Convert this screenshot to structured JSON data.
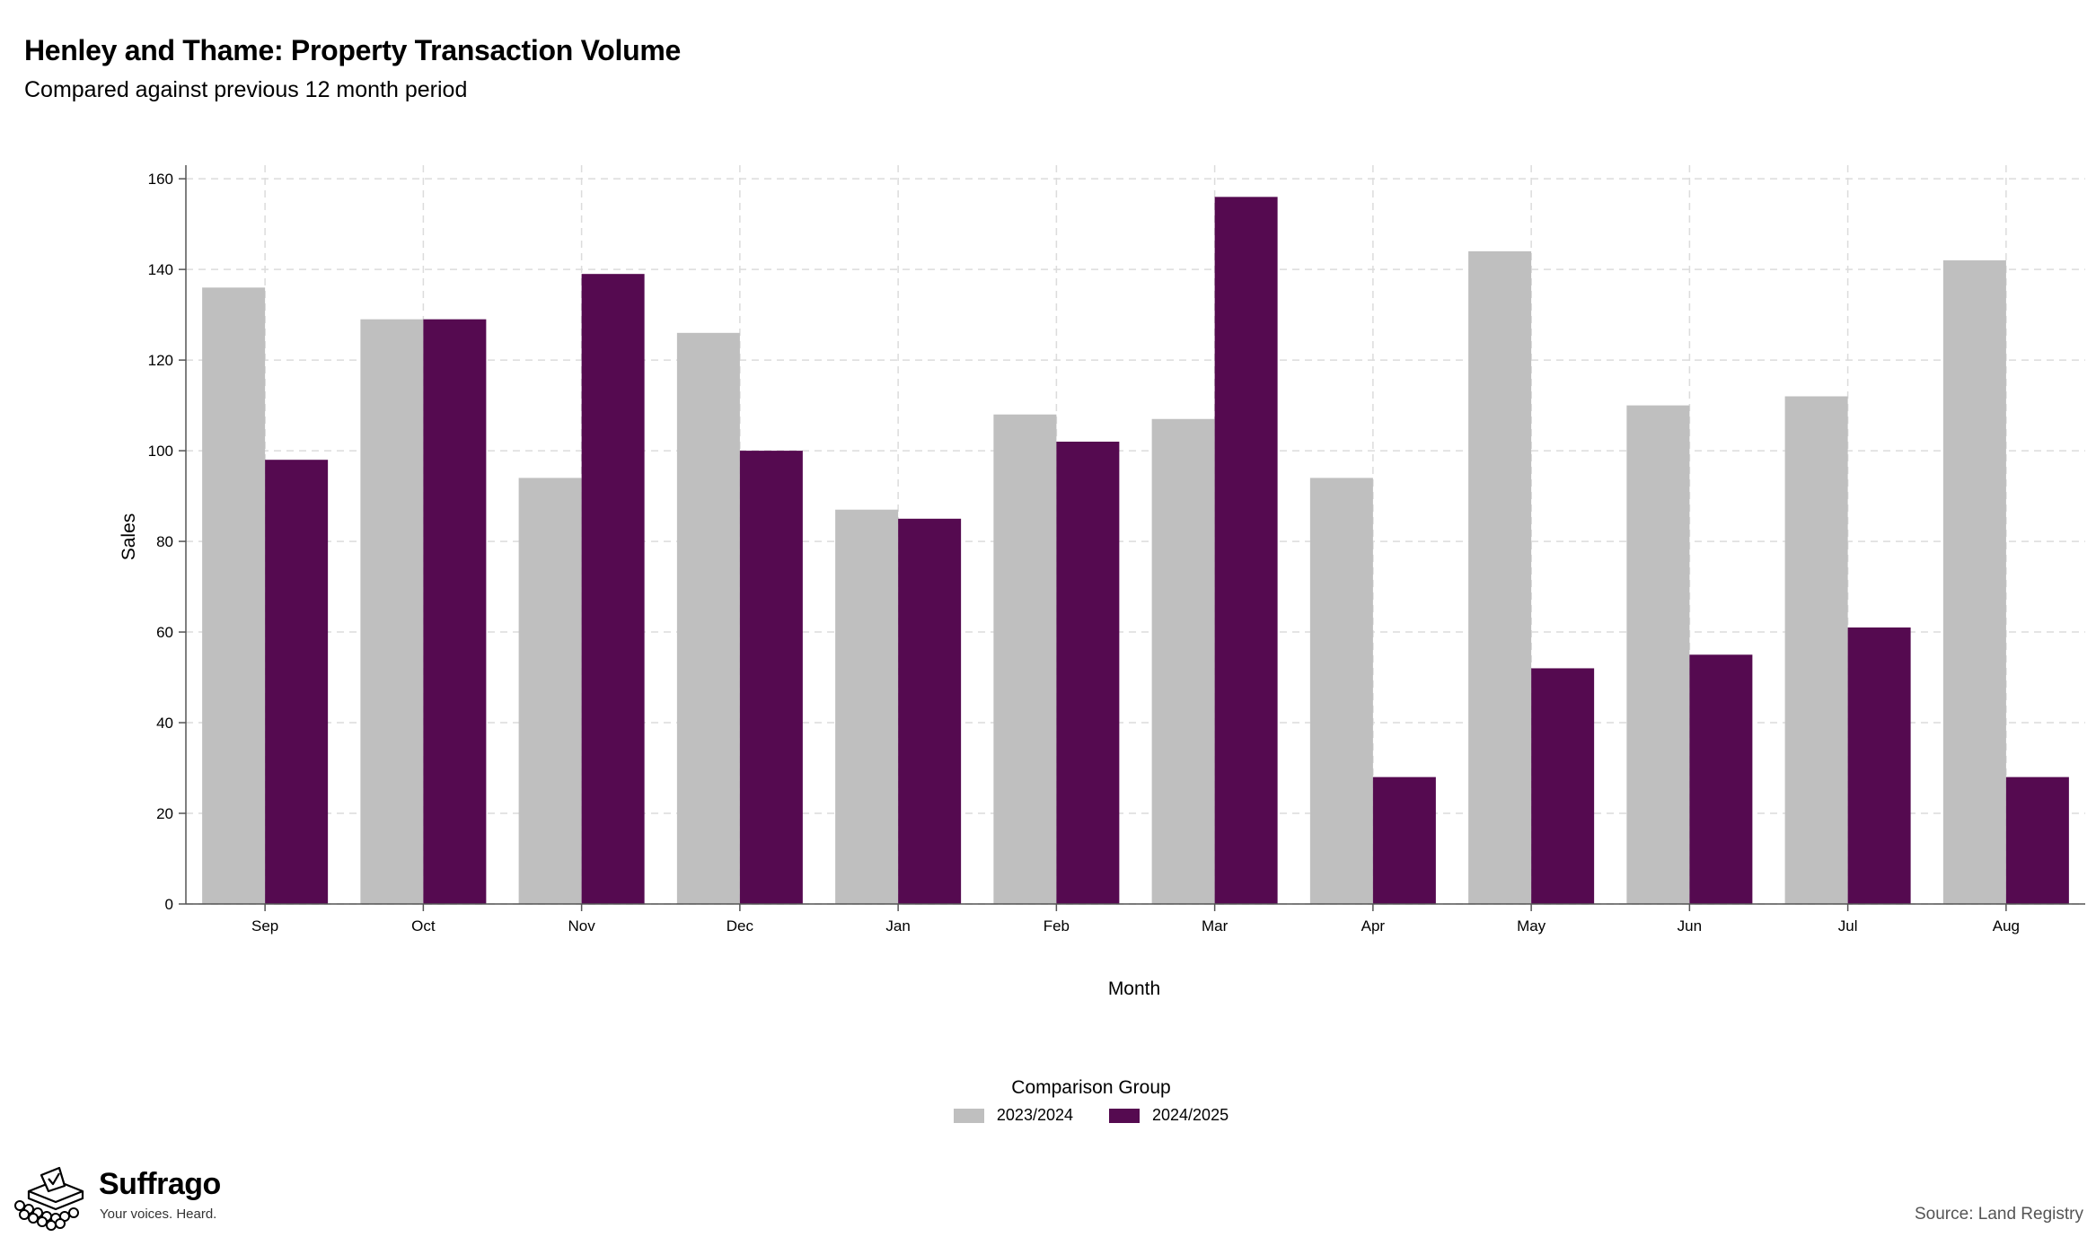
{
  "title": "Henley and Thame: Property Transaction Volume",
  "subtitle": "Compared against previous 12 month period",
  "chart_data": {
    "type": "bar",
    "categories": [
      "Sep",
      "Oct",
      "Nov",
      "Dec",
      "Jan",
      "Feb",
      "Mar",
      "Apr",
      "May",
      "Jun",
      "Jul",
      "Aug"
    ],
    "series": [
      {
        "name": "2023/2024",
        "color": "#bfbfbf",
        "values": [
          136,
          129,
          94,
          126,
          87,
          108,
          107,
          94,
          144,
          110,
          112,
          142
        ]
      },
      {
        "name": "2024/2025",
        "color": "#550a50",
        "values": [
          98,
          129,
          139,
          100,
          85,
          102,
          156,
          28,
          52,
          55,
          61,
          28
        ]
      }
    ],
    "xlabel": "Month",
    "ylabel": "Sales",
    "ylim": [
      0,
      163
    ],
    "yticks": [
      0,
      20,
      40,
      60,
      80,
      100,
      120,
      140,
      160
    ],
    "grid": true,
    "legend_title": "Comparison Group",
    "legend_position": "bottom"
  },
  "brand": {
    "name": "Suffrago",
    "tagline": "Your voices. Heard."
  },
  "source": "Source: Land Registry"
}
